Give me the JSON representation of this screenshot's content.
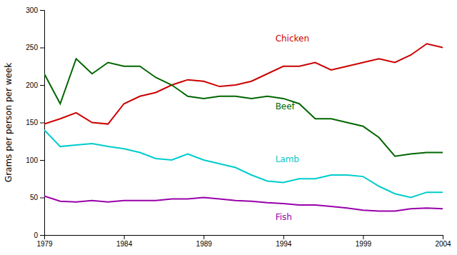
{
  "chart_data": {
    "type": "line",
    "ylabel": "Grams per person per week",
    "x": [
      1979,
      1980,
      1981,
      1982,
      1983,
      1984,
      1985,
      1986,
      1987,
      1988,
      1989,
      1990,
      1991,
      1992,
      1993,
      1994,
      1995,
      1996,
      1997,
      1998,
      1999,
      2000,
      2001,
      2002,
      2003,
      2004
    ],
    "series": [
      {
        "color": "#cc0000",
        "values": [
          148,
          155,
          163,
          150,
          148,
          175,
          185,
          190,
          200,
          207,
          205,
          198,
          200,
          205,
          215,
          225,
          225,
          230,
          220,
          225,
          230,
          235,
          230,
          240,
          255,
          250
        ]
      },
      {
        "color": "#006600",
        "values": [
          215,
          175,
          235,
          215,
          230,
          225,
          225,
          210,
          200,
          185,
          182,
          185,
          185,
          182,
          185,
          182,
          175,
          155,
          155,
          150,
          145,
          130,
          105,
          108,
          110,
          110
        ]
      },
      {
        "color": "#00cccc",
        "values": [
          140,
          118,
          120,
          122,
          118,
          115,
          110,
          102,
          100,
          108,
          100,
          95,
          90,
          80,
          72,
          70,
          75,
          75,
          80,
          80,
          78,
          65,
          55,
          50,
          57,
          57
        ]
      },
      {
        "color": "#9900aa",
        "values": [
          52,
          45,
          44,
          46,
          44,
          46,
          46,
          46,
          48,
          48,
          50,
          48,
          46,
          45,
          43,
          42,
          40,
          40,
          38,
          36,
          33,
          32,
          32,
          35,
          36,
          35
        ]
      }
    ],
    "annotations": [
      {
        "text": "Chicken",
        "x": 1993.5,
        "y": 258,
        "color": "#cc0000"
      },
      {
        "text": "Beef",
        "x": 1993.5,
        "y": 168,
        "color": "#006600"
      },
      {
        "text": "Lamb",
        "x": 1993.5,
        "y": 97,
        "color": "#00cccc"
      },
      {
        "text": "Fish",
        "x": 1993.5,
        "y": 20,
        "color": "#9900aa"
      }
    ],
    "xlim": [
      1979,
      2004
    ],
    "ylim": [
      0,
      300
    ],
    "xticks": [
      1979,
      1984,
      1989,
      1994,
      1999,
      2004
    ],
    "yticks": [
      0,
      50,
      100,
      150,
      200,
      250,
      300
    ],
    "grid": false
  }
}
